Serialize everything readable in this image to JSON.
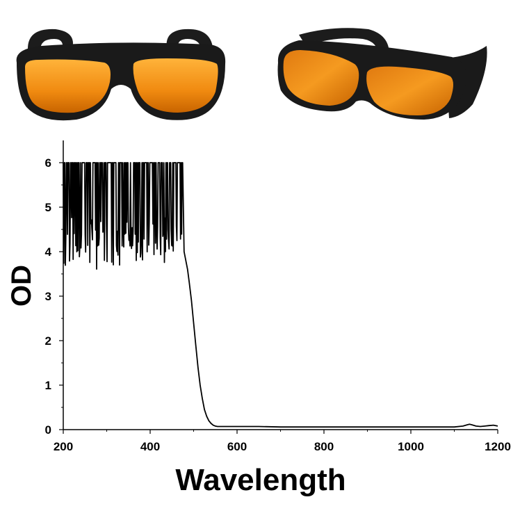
{
  "photos": [
    {
      "name": "goggles-front-view",
      "frame_color": "#1a1a1a",
      "lens_color": "#f08a10"
    },
    {
      "name": "goggles-angled-view",
      "frame_color": "#1a1a1a",
      "lens_color": "#f08a10"
    }
  ],
  "chart_data": {
    "type": "line",
    "title": "",
    "xlabel": "Wavelength",
    "ylabel": "OD",
    "xlim": [
      200,
      1200
    ],
    "ylim": [
      0,
      6.5
    ],
    "x_ticks": [
      200,
      400,
      600,
      800,
      1000,
      1200
    ],
    "y_ticks": [
      0,
      1,
      2,
      3,
      4,
      5,
      6
    ],
    "grid": false,
    "line_color": "#000000",
    "noise_region": {
      "x_start": 200,
      "x_end": 475,
      "y_max": 6,
      "y_min_approx": 3.6
    },
    "series": [
      {
        "name": "",
        "x": [
          200,
          205,
          210,
          215,
          220,
          225,
          230,
          235,
          240,
          245,
          250,
          255,
          260,
          265,
          270,
          275,
          280,
          285,
          290,
          295,
          300,
          305,
          310,
          315,
          320,
          325,
          330,
          335,
          340,
          345,
          350,
          355,
          360,
          365,
          370,
          375,
          380,
          385,
          390,
          395,
          400,
          405,
          410,
          415,
          420,
          425,
          430,
          435,
          440,
          445,
          450,
          455,
          460,
          465,
          470,
          475,
          478,
          482,
          486,
          490,
          495,
          500,
          505,
          510,
          515,
          520,
          525,
          530,
          535,
          540,
          545,
          550,
          555,
          560,
          565,
          570,
          575,
          580,
          590,
          600,
          650,
          700,
          750,
          800,
          850,
          900,
          950,
          1000,
          1050,
          1100,
          1120,
          1130,
          1135,
          1140,
          1150,
          1160,
          1170,
          1180,
          1190,
          1195,
          1200
        ],
        "y": [
          3.9,
          6.0,
          4.3,
          6.0,
          4.0,
          6.0,
          4.5,
          3.9,
          6.0,
          4.2,
          6.0,
          4.4,
          6.0,
          4.1,
          6.0,
          4.3,
          6.0,
          3.9,
          6.0,
          4.5,
          6.0,
          3.7,
          6.0,
          4.2,
          6.0,
          4.0,
          6.0,
          4.4,
          3.9,
          6.0,
          4.3,
          6.0,
          3.8,
          6.0,
          4.5,
          6.0,
          4.0,
          6.0,
          3.9,
          6.0,
          4.3,
          6.0,
          3.7,
          6.0,
          4.2,
          6.0,
          4.1,
          6.0,
          4.5,
          6.0,
          4.0,
          3.9,
          6.0,
          4.4,
          6.0,
          4.1,
          4.0,
          3.8,
          3.6,
          3.3,
          2.9,
          2.4,
          1.9,
          1.4,
          1.0,
          0.7,
          0.45,
          0.3,
          0.2,
          0.14,
          0.1,
          0.08,
          0.07,
          0.07,
          0.07,
          0.07,
          0.07,
          0.07,
          0.07,
          0.07,
          0.07,
          0.06,
          0.06,
          0.06,
          0.06,
          0.06,
          0.06,
          0.06,
          0.06,
          0.06,
          0.08,
          0.11,
          0.12,
          0.11,
          0.08,
          0.07,
          0.08,
          0.09,
          0.1,
          0.09,
          0.08
        ]
      }
    ]
  }
}
